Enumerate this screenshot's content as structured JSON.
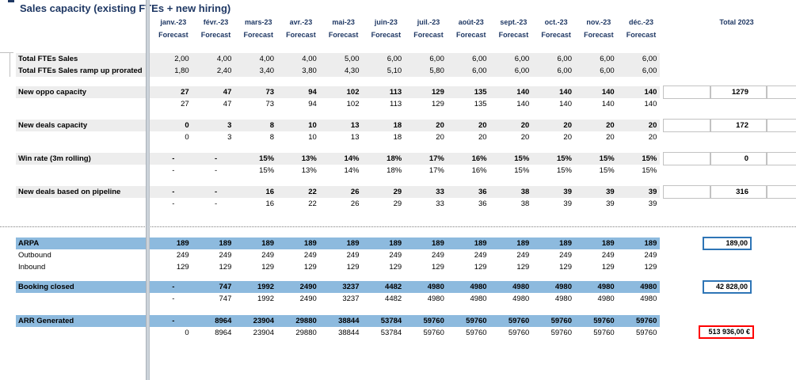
{
  "title": "Sales capacity (existing FTEs + new hiring)",
  "header": {
    "months": [
      {
        "label": "janv.-23",
        "sub": "Forecast"
      },
      {
        "label": "févr.-23",
        "sub": "Forecast"
      },
      {
        "label": "mars-23",
        "sub": "Forecast"
      },
      {
        "label": "avr.-23",
        "sub": "Forecast"
      },
      {
        "label": "mai-23",
        "sub": "Forecast"
      },
      {
        "label": "juin-23",
        "sub": "Forecast"
      },
      {
        "label": "juil.-23",
        "sub": "Forecast"
      },
      {
        "label": "août-23",
        "sub": "Forecast"
      },
      {
        "label": "sept.-23",
        "sub": "Forecast"
      },
      {
        "label": "oct.-23",
        "sub": "Forecast"
      },
      {
        "label": "nov.-23",
        "sub": "Forecast"
      },
      {
        "label": "déc.-23",
        "sub": "Forecast"
      }
    ],
    "total_label": "Total 2023"
  },
  "colors": {
    "band_gray": "#EDEDED",
    "band_blue": "#8DBADE",
    "header_text": "#1F3864",
    "box_blue_border": "#2E75B6",
    "box_red_border": "#FF0000"
  },
  "rows": [
    {
      "label": "Total FTEs Sales",
      "band": "gray",
      "bold_label": true,
      "bold_values": false,
      "values": [
        "2,00",
        "4,00",
        "4,00",
        "4,00",
        "5,00",
        "6,00",
        "6,00",
        "6,00",
        "6,00",
        "6,00",
        "6,00",
        "6,00"
      ]
    },
    {
      "label": "Total FTEs Sales ramp up prorated",
      "band": "gray",
      "bold_label": true,
      "bold_values": false,
      "values": [
        "1,80",
        "2,40",
        "3,40",
        "3,80",
        "4,30",
        "5,10",
        "5,80",
        "6,00",
        "6,00",
        "6,00",
        "6,00",
        "6,00"
      ]
    },
    {
      "label": "New oppo capacity",
      "band": "gray",
      "bold_label": true,
      "bold_values": true,
      "values": [
        "27",
        "47",
        "73",
        "94",
        "102",
        "113",
        "129",
        "135",
        "140",
        "140",
        "140",
        "140"
      ],
      "total": {
        "style": "plain",
        "value": "1279"
      }
    },
    {
      "label": "",
      "band": "none",
      "bold_label": false,
      "bold_values": false,
      "values": [
        "27",
        "47",
        "73",
        "94",
        "102",
        "113",
        "129",
        "135",
        "140",
        "140",
        "140",
        "140"
      ]
    },
    {
      "label": "New deals capacity",
      "band": "gray",
      "bold_label": true,
      "bold_values": true,
      "values": [
        "0",
        "3",
        "8",
        "10",
        "13",
        "18",
        "20",
        "20",
        "20",
        "20",
        "20",
        "20"
      ],
      "total": {
        "style": "plain",
        "value": "172"
      }
    },
    {
      "label": "",
      "band": "none",
      "bold_label": false,
      "bold_values": false,
      "values": [
        "0",
        "3",
        "8",
        "10",
        "13",
        "18",
        "20",
        "20",
        "20",
        "20",
        "20",
        "20"
      ]
    },
    {
      "label": "Win rate (3m rolling)",
      "band": "gray",
      "bold_label": true,
      "bold_values": true,
      "values": [
        "-",
        "-",
        "15%",
        "13%",
        "14%",
        "18%",
        "17%",
        "16%",
        "15%",
        "15%",
        "15%",
        "15%"
      ],
      "total": {
        "style": "plain",
        "value": "0"
      }
    },
    {
      "label": "",
      "band": "none",
      "bold_label": false,
      "bold_values": false,
      "values": [
        "-",
        "-",
        "15%",
        "13%",
        "14%",
        "18%",
        "17%",
        "16%",
        "15%",
        "15%",
        "15%",
        "15%"
      ]
    },
    {
      "label": "New deals based on pipeline",
      "band": "gray",
      "bold_label": true,
      "bold_values": true,
      "values": [
        "-",
        "-",
        "16",
        "22",
        "26",
        "29",
        "33",
        "36",
        "38",
        "39",
        "39",
        "39"
      ],
      "total": {
        "style": "plain",
        "value": "316"
      }
    },
    {
      "label": "",
      "band": "none",
      "bold_label": false,
      "bold_values": false,
      "values": [
        "-",
        "-",
        "16",
        "22",
        "26",
        "29",
        "33",
        "36",
        "38",
        "39",
        "39",
        "39"
      ]
    },
    {
      "label": "ARPA",
      "band": "blue",
      "bold_label": true,
      "bold_values": true,
      "values": [
        "189",
        "189",
        "189",
        "189",
        "189",
        "189",
        "189",
        "189",
        "189",
        "189",
        "189",
        "189"
      ],
      "total": {
        "style": "blue-box",
        "value": "189,00"
      }
    },
    {
      "label": "Outbound",
      "band": "none",
      "bold_label": false,
      "bold_values": false,
      "values": [
        "249",
        "249",
        "249",
        "249",
        "249",
        "249",
        "249",
        "249",
        "249",
        "249",
        "249",
        "249"
      ]
    },
    {
      "label": "Inbound",
      "band": "none",
      "bold_label": false,
      "bold_values": false,
      "values": [
        "129",
        "129",
        "129",
        "129",
        "129",
        "129",
        "129",
        "129",
        "129",
        "129",
        "129",
        "129"
      ]
    },
    {
      "label": "Booking closed",
      "band": "blue",
      "bold_label": true,
      "bold_values": true,
      "values": [
        "-",
        "747",
        "1992",
        "2490",
        "3237",
        "4482",
        "4980",
        "4980",
        "4980",
        "4980",
        "4980",
        "4980"
      ],
      "total": {
        "style": "blue-box",
        "value": "42 828,00"
      }
    },
    {
      "label": "",
      "band": "none",
      "bold_label": false,
      "bold_values": false,
      "values": [
        "-",
        "747",
        "1992",
        "2490",
        "3237",
        "4482",
        "4980",
        "4980",
        "4980",
        "4980",
        "4980",
        "4980"
      ]
    },
    {
      "label": "ARR Generated",
      "band": "blue",
      "bold_label": true,
      "bold_values": true,
      "values": [
        "-",
        "8964",
        "23904",
        "29880",
        "38844",
        "53784",
        "59760",
        "59760",
        "59760",
        "59760",
        "59760",
        "59760"
      ]
    },
    {
      "label": "",
      "band": "none",
      "bold_label": false,
      "bold_values": false,
      "values": [
        "0",
        "8964",
        "23904",
        "29880",
        "38844",
        "53784",
        "59760",
        "59760",
        "59760",
        "59760",
        "59760",
        "59760"
      ],
      "total": {
        "style": "red-box",
        "value": "513 936,00 €"
      }
    }
  ]
}
